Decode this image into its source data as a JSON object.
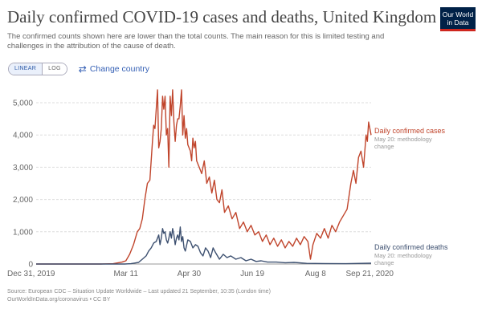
{
  "header": {
    "title": "Daily confirmed COVID-19 cases and deaths, United Kingdom",
    "subtitle": "The confirmed counts shown here are lower than the total counts. The main reason for this is limited testing and challenges in the attribution of the cause of death.",
    "logo_line1": "Our World",
    "logo_line2": "in Data"
  },
  "controls": {
    "linear_label": "LINEAR",
    "log_label": "LOG",
    "change_country_label": "Change country",
    "change_country_icon": "swap-arrows-icon"
  },
  "footer": {
    "source_line1": "Source: European CDC – Situation Update Worldwide – Last updated 21 September, 10:35 (London time)",
    "source_line2": "OurWorldInData.org/coronavirus • CC BY"
  },
  "colors": {
    "cases": "#c0452c",
    "deaths": "#3d5070"
  },
  "chart_data": {
    "type": "line",
    "x_axis": {
      "min": "2019-12-31",
      "max": "2020-09-21",
      "tick_labels": [
        "Dec 31, 2019",
        "Mar 11",
        "Apr 30",
        "Jun 19",
        "Aug 8",
        "Sep 21, 2020"
      ],
      "tick_dates": [
        "2019-12-31",
        "2020-03-11",
        "2020-04-30",
        "2020-06-19",
        "2020-08-08",
        "2020-09-21"
      ]
    },
    "y_axis": {
      "min": 0,
      "max": 5000,
      "ticks": [
        0,
        1000,
        2000,
        3000,
        4000,
        5000
      ],
      "tick_labels": [
        "0",
        "1,000",
        "2,000",
        "3,000",
        "4,000",
        "5,000"
      ],
      "grid": true
    },
    "series": [
      {
        "name": "Daily confirmed cases",
        "note": "May 20: methodology change",
        "color": "#c0452c",
        "points": [
          [
            "2019-12-31",
            0
          ],
          [
            "2020-02-20",
            0
          ],
          [
            "2020-03-01",
            10
          ],
          [
            "2020-03-05",
            40
          ],
          [
            "2020-03-08",
            60
          ],
          [
            "2020-03-11",
            100
          ],
          [
            "2020-03-14",
            300
          ],
          [
            "2020-03-17",
            600
          ],
          [
            "2020-03-20",
            1000
          ],
          [
            "2020-03-22",
            1100
          ],
          [
            "2020-03-24",
            1400
          ],
          [
            "2020-03-26",
            2000
          ],
          [
            "2020-03-28",
            2500
          ],
          [
            "2020-03-30",
            2600
          ],
          [
            "2020-04-01",
            3800
          ],
          [
            "2020-04-02",
            4300
          ],
          [
            "2020-04-03",
            4200
          ],
          [
            "2020-04-04",
            4800
          ],
          [
            "2020-04-05",
            5400
          ],
          [
            "2020-04-06",
            3600
          ],
          [
            "2020-04-07",
            3800
          ],
          [
            "2020-04-08",
            4200
          ],
          [
            "2020-04-09",
            5200
          ],
          [
            "2020-04-10",
            4800
          ],
          [
            "2020-04-11",
            5200
          ],
          [
            "2020-04-12",
            4000
          ],
          [
            "2020-04-13",
            4200
          ],
          [
            "2020-04-14",
            3000
          ],
          [
            "2020-04-15",
            5200
          ],
          [
            "2020-04-16",
            4600
          ],
          [
            "2020-04-17",
            5400
          ],
          [
            "2020-04-18",
            4400
          ],
          [
            "2020-04-19",
            3800
          ],
          [
            "2020-04-20",
            4300
          ],
          [
            "2020-04-21",
            4500
          ],
          [
            "2020-04-22",
            4500
          ],
          [
            "2020-04-23",
            4900
          ],
          [
            "2020-04-24",
            5400
          ],
          [
            "2020-04-25",
            4000
          ],
          [
            "2020-04-26",
            4600
          ],
          [
            "2020-04-27",
            3900
          ],
          [
            "2020-04-28",
            4200
          ],
          [
            "2020-04-29",
            3700
          ],
          [
            "2020-05-01",
            3500
          ],
          [
            "2020-05-02",
            3200
          ],
          [
            "2020-05-03",
            3900
          ],
          [
            "2020-05-04",
            3600
          ],
          [
            "2020-05-05",
            3800
          ],
          [
            "2020-05-06",
            3200
          ],
          [
            "2020-05-08",
            3000
          ],
          [
            "2020-05-10",
            2800
          ],
          [
            "2020-05-12",
            3200
          ],
          [
            "2020-05-14",
            2500
          ],
          [
            "2020-05-16",
            2700
          ],
          [
            "2020-05-18",
            2200
          ],
          [
            "2020-05-20",
            2600
          ],
          [
            "2020-05-22",
            2000
          ],
          [
            "2020-05-24",
            1900
          ],
          [
            "2020-05-26",
            2300
          ],
          [
            "2020-05-28",
            1600
          ],
          [
            "2020-05-31",
            1800
          ],
          [
            "2020-06-03",
            1400
          ],
          [
            "2020-06-06",
            1600
          ],
          [
            "2020-06-09",
            1100
          ],
          [
            "2020-06-12",
            1300
          ],
          [
            "2020-06-15",
            1000
          ],
          [
            "2020-06-18",
            1200
          ],
          [
            "2020-06-21",
            900
          ],
          [
            "2020-06-24",
            1000
          ],
          [
            "2020-06-27",
            700
          ],
          [
            "2020-06-30",
            900
          ],
          [
            "2020-07-03",
            600
          ],
          [
            "2020-07-06",
            800
          ],
          [
            "2020-07-09",
            550
          ],
          [
            "2020-07-12",
            750
          ],
          [
            "2020-07-15",
            500
          ],
          [
            "2020-07-18",
            700
          ],
          [
            "2020-07-21",
            550
          ],
          [
            "2020-07-24",
            800
          ],
          [
            "2020-07-27",
            600
          ],
          [
            "2020-07-30",
            850
          ],
          [
            "2020-08-02",
            700
          ],
          [
            "2020-08-04",
            150
          ],
          [
            "2020-08-06",
            600
          ],
          [
            "2020-08-09",
            950
          ],
          [
            "2020-08-12",
            800
          ],
          [
            "2020-08-15",
            1100
          ],
          [
            "2020-08-18",
            800
          ],
          [
            "2020-08-21",
            1200
          ],
          [
            "2020-08-24",
            1000
          ],
          [
            "2020-08-27",
            1300
          ],
          [
            "2020-08-30",
            1500
          ],
          [
            "2020-09-02",
            1700
          ],
          [
            "2020-09-05",
            2500
          ],
          [
            "2020-09-07",
            2900
          ],
          [
            "2020-09-09",
            2500
          ],
          [
            "2020-09-11",
            3300
          ],
          [
            "2020-09-13",
            3500
          ],
          [
            "2020-09-15",
            3000
          ],
          [
            "2020-09-17",
            4000
          ],
          [
            "2020-09-18",
            3800
          ],
          [
            "2020-09-19",
            4400
          ],
          [
            "2020-09-21",
            4000
          ]
        ]
      },
      {
        "name": "Daily confirmed deaths",
        "note": "May 20: methodology change",
        "color": "#3d5070",
        "points": [
          [
            "2019-12-31",
            0
          ],
          [
            "2020-03-10",
            0
          ],
          [
            "2020-03-15",
            10
          ],
          [
            "2020-03-18",
            30
          ],
          [
            "2020-03-21",
            50
          ],
          [
            "2020-03-24",
            150
          ],
          [
            "2020-03-27",
            250
          ],
          [
            "2020-03-29",
            400
          ],
          [
            "2020-03-31",
            500
          ],
          [
            "2020-04-02",
            650
          ],
          [
            "2020-04-04",
            700
          ],
          [
            "2020-04-06",
            900
          ],
          [
            "2020-04-07",
            600
          ],
          [
            "2020-04-08",
            800
          ],
          [
            "2020-04-09",
            1100
          ],
          [
            "2020-04-10",
            950
          ],
          [
            "2020-04-11",
            1000
          ],
          [
            "2020-04-12",
            750
          ],
          [
            "2020-04-13",
            650
          ],
          [
            "2020-04-14",
            800
          ],
          [
            "2020-04-15",
            1000
          ],
          [
            "2020-04-16",
            800
          ],
          [
            "2020-04-17",
            1100
          ],
          [
            "2020-04-18",
            900
          ],
          [
            "2020-04-19",
            600
          ],
          [
            "2020-04-20",
            800
          ],
          [
            "2020-04-21",
            900
          ],
          [
            "2020-04-22",
            750
          ],
          [
            "2020-04-23",
            1150
          ],
          [
            "2020-04-24",
            700
          ],
          [
            "2020-04-25",
            850
          ],
          [
            "2020-04-26",
            500
          ],
          [
            "2020-04-27",
            400
          ],
          [
            "2020-04-29",
            750
          ],
          [
            "2020-05-01",
            700
          ],
          [
            "2020-05-03",
            500
          ],
          [
            "2020-05-05",
            600
          ],
          [
            "2020-05-07",
            550
          ],
          [
            "2020-05-09",
            350
          ],
          [
            "2020-05-11",
            250
          ],
          [
            "2020-05-13",
            500
          ],
          [
            "2020-05-15",
            400
          ],
          [
            "2020-05-17",
            200
          ],
          [
            "2020-05-19",
            500
          ],
          [
            "2020-05-21",
            350
          ],
          [
            "2020-05-24",
            150
          ],
          [
            "2020-05-27",
            300
          ],
          [
            "2020-05-30",
            200
          ],
          [
            "2020-06-02",
            250
          ],
          [
            "2020-06-06",
            150
          ],
          [
            "2020-06-10",
            200
          ],
          [
            "2020-06-14",
            100
          ],
          [
            "2020-06-18",
            150
          ],
          [
            "2020-06-22",
            80
          ],
          [
            "2020-06-26",
            100
          ],
          [
            "2020-07-01",
            60
          ],
          [
            "2020-07-08",
            60
          ],
          [
            "2020-07-15",
            40
          ],
          [
            "2020-07-22",
            50
          ],
          [
            "2020-08-01",
            20
          ],
          [
            "2020-08-15",
            15
          ],
          [
            "2020-09-01",
            10
          ],
          [
            "2020-09-21",
            25
          ]
        ]
      }
    ]
  }
}
